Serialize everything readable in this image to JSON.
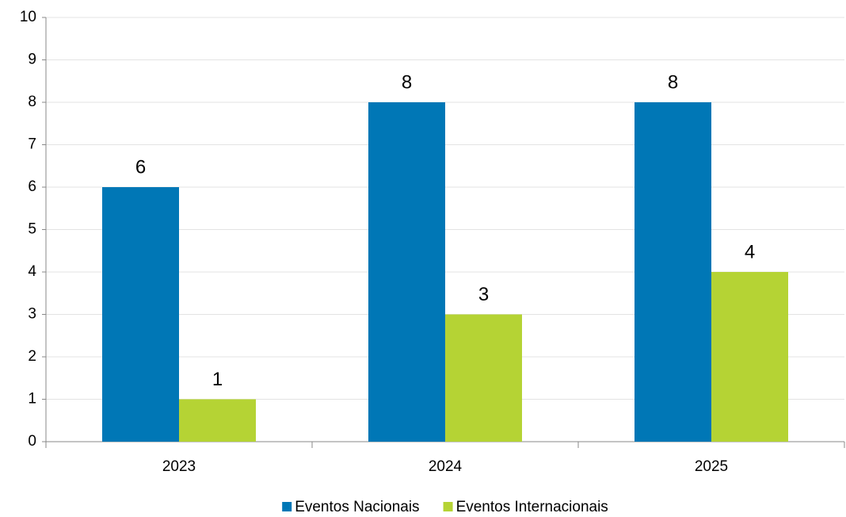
{
  "chart_data": {
    "type": "bar",
    "categories": [
      "2023",
      "2024",
      "2025"
    ],
    "series": [
      {
        "name": "Eventos Nacionais",
        "color": "#0077b6",
        "values": [
          6,
          8,
          8
        ]
      },
      {
        "name": "Eventos Internacionais",
        "color": "#b5d334",
        "values": [
          1,
          3,
          4
        ]
      }
    ],
    "ylim": [
      0,
      10
    ],
    "yticks": [
      0,
      1,
      2,
      3,
      4,
      5,
      6,
      7,
      8,
      9,
      10
    ],
    "grid": true,
    "legend": "bottom"
  }
}
